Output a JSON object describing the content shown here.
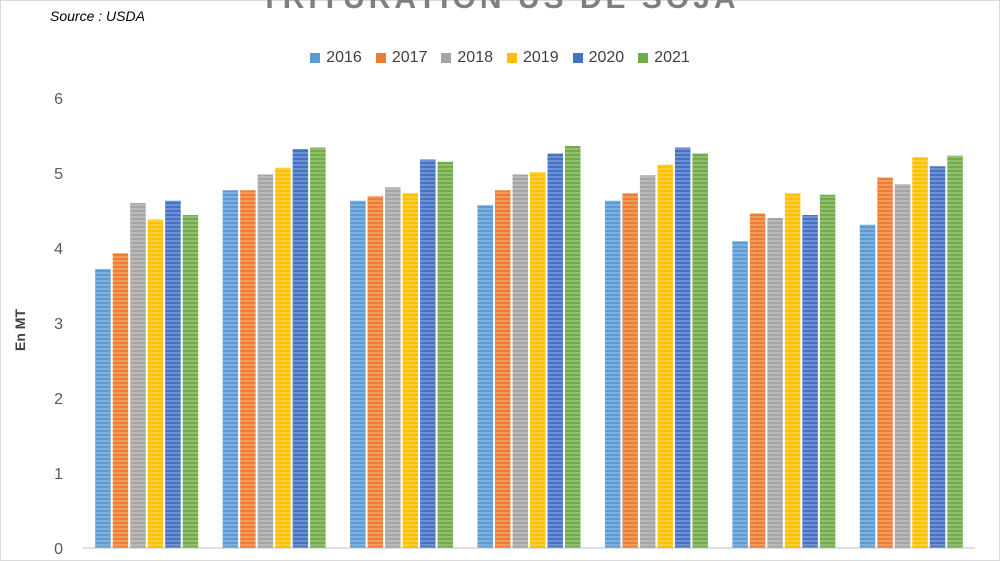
{
  "source": "Source : USDA",
  "chart_data": {
    "type": "bar",
    "title": "TRITURATION US DE SOJA",
    "xlabel": "",
    "ylabel": "En MT",
    "ylim": [
      0,
      6
    ],
    "yticks": [
      "0",
      "1",
      "2",
      "3",
      "4",
      "5",
      "6"
    ],
    "grid": false,
    "legend_position": "top",
    "categories": [
      "",
      "",
      "",
      "",
      "",
      "",
      ""
    ],
    "series": [
      {
        "name": "2016",
        "color": "#5b9bd5",
        "values": [
          3.72,
          4.77,
          4.63,
          4.57,
          4.63,
          4.09,
          4.31
        ]
      },
      {
        "name": "2017",
        "color": "#ed7d31",
        "values": [
          3.93,
          4.77,
          4.69,
          4.77,
          4.73,
          4.46,
          4.94
        ]
      },
      {
        "name": "2018",
        "color": "#a5a5a5",
        "values": [
          4.6,
          4.98,
          4.81,
          4.98,
          4.97,
          4.4,
          4.85
        ]
      },
      {
        "name": "2019",
        "color": "#ffc000",
        "values": [
          4.38,
          5.07,
          4.73,
          5.01,
          5.11,
          4.73,
          5.21
        ]
      },
      {
        "name": "2020",
        "color": "#4472c4",
        "values": [
          4.63,
          5.32,
          5.18,
          5.26,
          5.34,
          4.44,
          5.09
        ]
      },
      {
        "name": "2021",
        "color": "#70ad47",
        "values": [
          4.44,
          5.34,
          5.15,
          5.36,
          5.26,
          4.71,
          5.23
        ]
      }
    ]
  }
}
